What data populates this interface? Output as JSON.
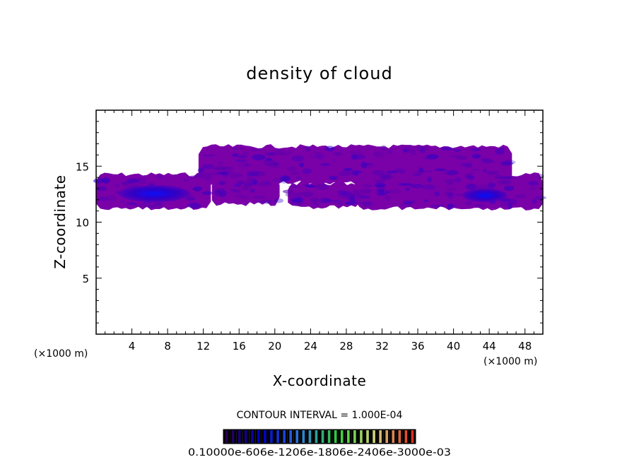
{
  "chart_data": {
    "type": "heatmap",
    "title": "density of cloud",
    "xlabel": "X-coordinate",
    "ylabel": "Z-coordinate",
    "x_unit_left": "(×1000 m)",
    "x_unit_right": "(×1000 m)",
    "xlim": [
      0,
      50
    ],
    "ylim": [
      0,
      20
    ],
    "x_ticks": [
      4,
      8,
      12,
      16,
      20,
      24,
      28,
      32,
      36,
      40,
      44,
      48
    ],
    "y_ticks": [
      5,
      10,
      15
    ],
    "x_minor_step": 1,
    "y_minor_step": 1,
    "grid": false,
    "contour_interval_text": "CONTOUR INTERVAL = 1.000E-04",
    "colorbar": {
      "labels_text": "0.10000e-606e-1206e-1806e-2406e-3000e-03",
      "range": [
        0.0001,
        0.003
      ],
      "levels": 30,
      "colors": [
        "#2a0050",
        "#0000c8",
        "#2f7fe0",
        "#30d030",
        "#d8d080",
        "#e03020"
      ]
    },
    "cloud_regions": [
      {
        "name": "lower-left-band",
        "x": [
          0,
          12.8
        ],
        "z": [
          11.2,
          14.3
        ],
        "core": {
          "x": [
            2.5,
            10.5
          ],
          "z": [
            11.8,
            13.3
          ]
        }
      },
      {
        "name": "upper-middle-band",
        "x": [
          11.5,
          46.5
        ],
        "z": [
          13.5,
          16.8
        ]
      },
      {
        "name": "middle-patch",
        "x": [
          13,
          20.5
        ],
        "z": [
          11.6,
          14
        ]
      },
      {
        "name": "lower-middle-band",
        "x": [
          21.5,
          29.5
        ],
        "z": [
          11.3,
          13.5
        ]
      },
      {
        "name": "right-band",
        "x": [
          29,
          50
        ],
        "z": [
          11.2,
          14.3
        ],
        "core": {
          "x": [
            41,
            46
          ],
          "z": [
            11.8,
            13
          ]
        }
      }
    ],
    "colors": {
      "cloud_fill": "#7a00a8",
      "cloud_core": "#2a00c8",
      "cloud_deep": "#0010ff"
    }
  }
}
